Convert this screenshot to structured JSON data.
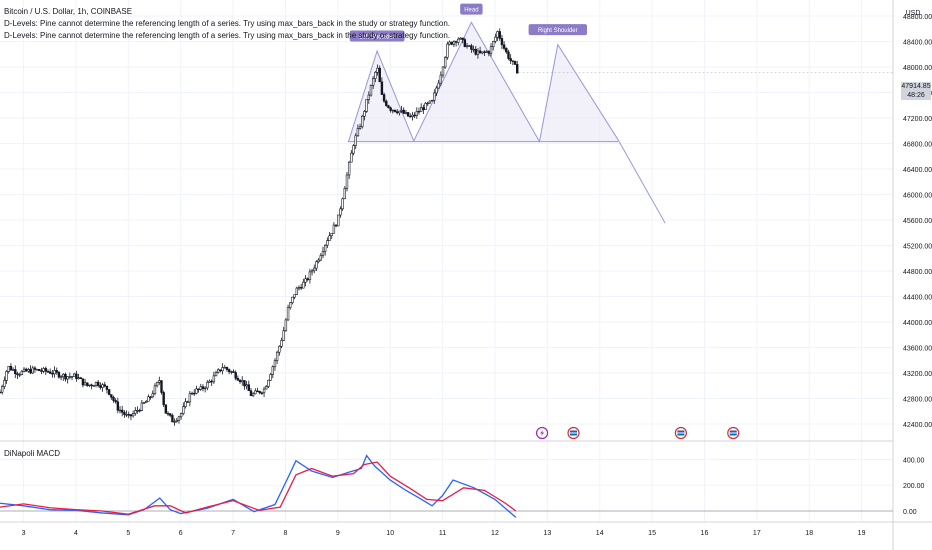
{
  "header": {
    "title": "Bitcoin / U.S. Dollar, 1h, COINBASE",
    "messages": [
      "D-Levels: Pine cannot determine the referencing length of a series. Try using max_bars_back in the study or strategy function.",
      "D-Levels: Pine cannot determine the referencing length of a series. Try using max_bars_back in the study or strategy function."
    ]
  },
  "price_scale": {
    "currency": "USD",
    "last_price": "47914.85",
    "countdown": "48:26"
  },
  "colors": {
    "candle": "#131722",
    "grid": "#f0f3fa",
    "pattern_line": "#9598d6",
    "pattern_fill": "#eceaf6",
    "label_bg": "#8c7bc6",
    "macd_line": "#2962ff",
    "signal_line": "#e91e47",
    "zero_line": "#9598a1",
    "badge_bg": "#d1d4dc"
  },
  "event_icons": [
    "flash-icon",
    "us-flag-icon",
    "us-flag-icon",
    "us-flag-icon"
  ],
  "chart_data": [
    {
      "type": "candlestick",
      "title": "Bitcoin / U.S. Dollar, 1h, COINBASE",
      "x_ticks": [
        "3",
        "4",
        "5",
        "6",
        "7",
        "8",
        "9",
        "10",
        "11",
        "12",
        "13",
        "14",
        "15",
        "16",
        "17",
        "18",
        "19"
      ],
      "y_ticks": [
        42400,
        42800,
        43200,
        43600,
        44000,
        44400,
        44800,
        45200,
        45600,
        46000,
        46400,
        46800,
        47200,
        47600,
        48000,
        48400,
        48800
      ],
      "ylim": [
        42150,
        49050
      ],
      "xlim": [
        2.55,
        19.6
      ],
      "last_price": 47914.85,
      "price_path": [
        [
          2.55,
          42900
        ],
        [
          2.7,
          43300
        ],
        [
          2.9,
          43200
        ],
        [
          3.2,
          43250
        ],
        [
          3.5,
          43220
        ],
        [
          3.8,
          43150
        ],
        [
          4.0,
          43150
        ],
        [
          4.2,
          43000
        ],
        [
          4.4,
          43050
        ],
        [
          4.6,
          42950
        ],
        [
          4.8,
          42650
        ],
        [
          5.0,
          42500
        ],
        [
          5.15,
          42600
        ],
        [
          5.4,
          42800
        ],
        [
          5.6,
          43100
        ],
        [
          5.7,
          42600
        ],
        [
          5.85,
          42450
        ],
        [
          6.0,
          42550
        ],
        [
          6.2,
          42900
        ],
        [
          6.4,
          42950
        ],
        [
          6.6,
          43100
        ],
        [
          6.8,
          43300
        ],
        [
          7.0,
          43200
        ],
        [
          7.2,
          43050
        ],
        [
          7.35,
          42850
        ],
        [
          7.6,
          42950
        ],
        [
          7.8,
          43400
        ],
        [
          7.95,
          43800
        ],
        [
          8.05,
          44200
        ],
        [
          8.2,
          44500
        ],
        [
          8.4,
          44650
        ],
        [
          8.6,
          44950
        ],
        [
          8.8,
          45300
        ],
        [
          9.0,
          45600
        ],
        [
          9.15,
          46200
        ],
        [
          9.3,
          46800
        ],
        [
          9.45,
          47150
        ],
        [
          9.6,
          47600
        ],
        [
          9.75,
          48000
        ],
        [
          9.85,
          47500
        ],
        [
          10.0,
          47350
        ],
        [
          10.2,
          47300
        ],
        [
          10.4,
          47200
        ],
        [
          10.6,
          47350
        ],
        [
          10.8,
          47450
        ],
        [
          10.95,
          47850
        ],
        [
          11.1,
          48350
        ],
        [
          11.3,
          48450
        ],
        [
          11.5,
          48300
        ],
        [
          11.7,
          48200
        ],
        [
          11.9,
          48250
        ],
        [
          12.05,
          48550
        ],
        [
          12.2,
          48250
        ],
        [
          12.3,
          48100
        ],
        [
          12.45,
          47914.85
        ]
      ],
      "pattern": {
        "points": [
          [
            9.2,
            46820
          ],
          [
            9.75,
            48250
          ],
          [
            10.45,
            46840
          ],
          [
            11.55,
            48700
          ],
          [
            12.85,
            46830
          ],
          [
            13.2,
            48350
          ],
          [
            14.35,
            46860
          ]
        ],
        "neckline": [
          [
            9.2,
            46830
          ],
          [
            14.35,
            46830
          ]
        ],
        "projection": [
          [
            14.35,
            46860
          ],
          [
            15.25,
            45550
          ]
        ],
        "labels": [
          {
            "text": "Left Shoulder",
            "x": 9.75,
            "y": 48400
          },
          {
            "text": "Head",
            "x": 11.55,
            "y": 48820
          },
          {
            "text": "Right Shoulder",
            "x": 13.2,
            "y": 48500
          }
        ]
      }
    },
    {
      "type": "line",
      "title": "DiNapoli MACD",
      "y_ticks": [
        0,
        200,
        400
      ],
      "ylim": [
        -70,
        520
      ],
      "series": [
        {
          "name": "MACD",
          "points": [
            [
              2.55,
              60
            ],
            [
              3.0,
              40
            ],
            [
              3.5,
              10
            ],
            [
              4.0,
              5
            ],
            [
              4.5,
              -15
            ],
            [
              5.0,
              -30
            ],
            [
              5.3,
              10
            ],
            [
              5.6,
              100
            ],
            [
              5.8,
              10
            ],
            [
              6.0,
              -20
            ],
            [
              6.5,
              20
            ],
            [
              7.0,
              90
            ],
            [
              7.4,
              -5
            ],
            [
              7.8,
              50
            ],
            [
              8.05,
              260
            ],
            [
              8.2,
              390
            ],
            [
              8.5,
              310
            ],
            [
              8.9,
              260
            ],
            [
              9.2,
              300
            ],
            [
              9.45,
              330
            ],
            [
              9.55,
              430
            ],
            [
              9.7,
              350
            ],
            [
              10.0,
              240
            ],
            [
              10.3,
              160
            ],
            [
              10.6,
              90
            ],
            [
              10.8,
              40
            ],
            [
              11.0,
              120
            ],
            [
              11.2,
              240
            ],
            [
              11.6,
              180
            ],
            [
              12.0,
              90
            ],
            [
              12.2,
              20
            ],
            [
              12.4,
              -50
            ]
          ]
        },
        {
          "name": "Signal",
          "points": [
            [
              2.55,
              30
            ],
            [
              3.0,
              55
            ],
            [
              3.5,
              25
            ],
            [
              4.0,
              10
            ],
            [
              4.5,
              0
            ],
            [
              5.0,
              -25
            ],
            [
              5.5,
              40
            ],
            [
              5.8,
              40
            ],
            [
              6.1,
              -15
            ],
            [
              6.5,
              30
            ],
            [
              7.0,
              80
            ],
            [
              7.5,
              5
            ],
            [
              7.9,
              30
            ],
            [
              8.2,
              280
            ],
            [
              8.5,
              330
            ],
            [
              8.9,
              270
            ],
            [
              9.3,
              290
            ],
            [
              9.5,
              360
            ],
            [
              9.75,
              380
            ],
            [
              10.0,
              270
            ],
            [
              10.4,
              170
            ],
            [
              10.7,
              90
            ],
            [
              11.0,
              80
            ],
            [
              11.4,
              180
            ],
            [
              11.8,
              160
            ],
            [
              12.2,
              60
            ],
            [
              12.4,
              0
            ]
          ]
        }
      ]
    }
  ]
}
